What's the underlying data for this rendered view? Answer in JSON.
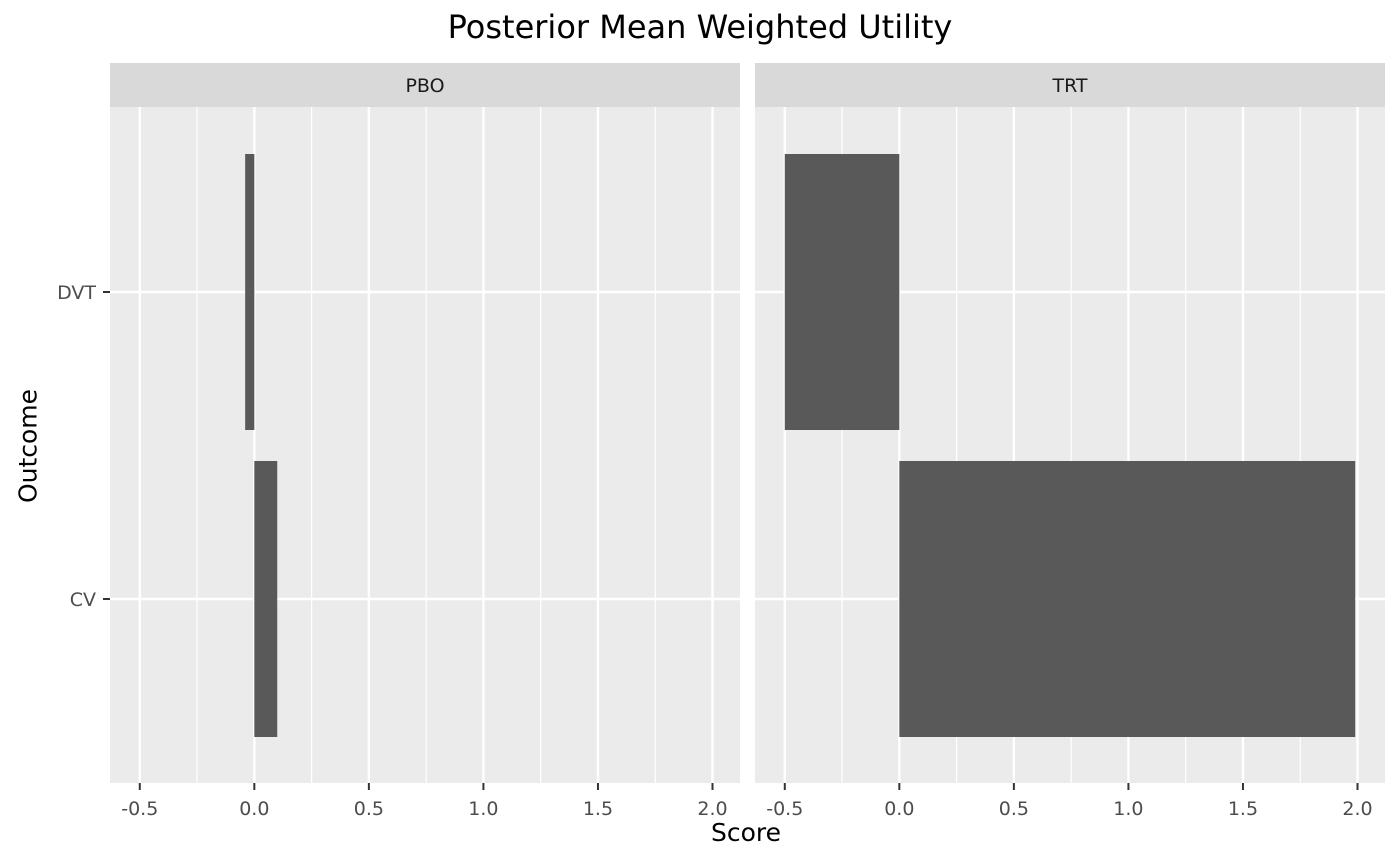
{
  "chart_data": {
    "type": "bar",
    "orientation": "horizontal",
    "title": "Posterior Mean Weighted Utility",
    "xlabel": "Score",
    "ylabel": "Outcome",
    "categories": [
      "DVT",
      "CV"
    ],
    "xlim": [
      -0.63,
      2.12
    ],
    "xticks": [
      -0.5,
      0.0,
      0.5,
      1.0,
      1.5,
      2.0
    ],
    "xtick_labels": [
      "-0.5",
      "0.0",
      "0.5",
      "1.0",
      "1.5",
      "2.0"
    ],
    "grid": true,
    "facets": [
      {
        "label": "PBO",
        "values": [
          -0.04,
          0.1
        ]
      },
      {
        "label": "TRT",
        "values": [
          -0.5,
          1.99
        ]
      }
    ],
    "colors": {
      "bar": "#595959",
      "panel_bg": "#EBEBEB",
      "strip_bg": "#D9D9D9",
      "grid": "#FFFFFF",
      "axis_text": "#4D4D4D"
    }
  }
}
